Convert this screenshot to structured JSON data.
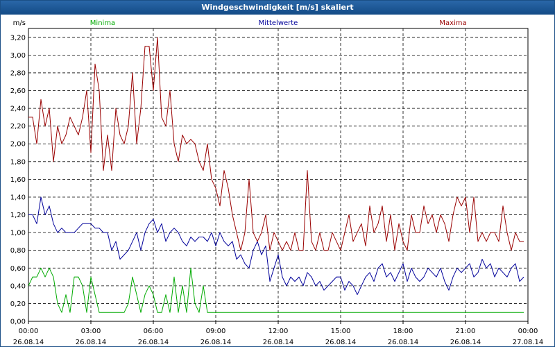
{
  "window": {
    "title": "Windgeschwindigkeit [m/s] skaliert"
  },
  "chart_data": {
    "type": "line",
    "title": "Windgeschwindigkeit [m/s] skaliert",
    "ylabel": "m/s",
    "xlabel": "",
    "ylim": [
      0,
      3.3
    ],
    "yticks": [
      "0,00",
      "0,20",
      "0,40",
      "0,60",
      "0,80",
      "1,00",
      "1,20",
      "1,40",
      "1,60",
      "1,80",
      "2,00",
      "2,20",
      "2,40",
      "2,60",
      "2,80",
      "3,00",
      "3,20"
    ],
    "xticks": [
      {
        "time": "00:00",
        "date": "26.08.14"
      },
      {
        "time": "03:00",
        "date": "26.08.14"
      },
      {
        "time": "06:00",
        "date": "26.08.14"
      },
      {
        "time": "09:00",
        "date": "26.08.14"
      },
      {
        "time": "12:00",
        "date": "26.08.14"
      },
      {
        "time": "15:00",
        "date": "26.08.14"
      },
      {
        "time": "18:00",
        "date": "26.08.14"
      },
      {
        "time": "21:00",
        "date": "26.08.14"
      },
      {
        "time": "00:00",
        "date": "27.08.14"
      }
    ],
    "x_hours": [
      0,
      0.2,
      0.4,
      0.6,
      0.8,
      1,
      1.2,
      1.4,
      1.6,
      1.8,
      2,
      2.2,
      2.4,
      2.6,
      2.8,
      3,
      3.2,
      3.4,
      3.6,
      3.8,
      4,
      4.2,
      4.4,
      4.6,
      4.8,
      5,
      5.2,
      5.4,
      5.6,
      5.8,
      6,
      6.2,
      6.4,
      6.6,
      6.8,
      7,
      7.2,
      7.4,
      7.6,
      7.8,
      8,
      8.2,
      8.4,
      8.6,
      8.8,
      9,
      9.2,
      9.4,
      9.6,
      9.8,
      10,
      10.2,
      10.4,
      10.6,
      10.8,
      11,
      11.2,
      11.4,
      11.6,
      11.8,
      12,
      12.2,
      12.4,
      12.6,
      12.8,
      13,
      13.2,
      13.4,
      13.6,
      13.8,
      14,
      14.2,
      14.4,
      14.6,
      14.8,
      15,
      15.2,
      15.4,
      15.6,
      15.8,
      16,
      16.2,
      16.4,
      16.6,
      16.8,
      17,
      17.2,
      17.4,
      17.6,
      17.8,
      18,
      18.2,
      18.4,
      18.6,
      18.8,
      19,
      19.2,
      19.4,
      19.6,
      19.8,
      20,
      20.2,
      20.4,
      20.6,
      20.8,
      21,
      21.2,
      21.4,
      21.6,
      21.8,
      22,
      22.2,
      22.4,
      22.6,
      22.8,
      23,
      23.2,
      23.4,
      23.6,
      23.8
    ],
    "grid": true,
    "legend_position": "top",
    "series": [
      {
        "name": "Minima",
        "color": "#00aa00",
        "values": [
          0.4,
          0.5,
          0.5,
          0.6,
          0.5,
          0.6,
          0.5,
          0.2,
          0.1,
          0.3,
          0.1,
          0.5,
          0.5,
          0.4,
          0.1,
          0.5,
          0.3,
          0.1,
          0.1,
          0.1,
          0.1,
          0.1,
          0.1,
          0.1,
          0.2,
          0.5,
          0.3,
          0.1,
          0.3,
          0.4,
          0.3,
          0.1,
          0.1,
          0.3,
          0.1,
          0.5,
          0.1,
          0.4,
          0.1,
          0.6,
          0.2,
          0.1,
          0.4,
          0.1,
          0.1,
          0.1,
          0.1,
          0.1,
          0.1,
          0.1,
          0.1,
          0.1,
          0.1,
          0.1,
          0.1,
          0.1,
          0.1,
          0.1,
          0.1,
          0.1,
          0.1,
          0.1,
          0.1,
          0.1,
          0.1,
          0.1,
          0.1,
          0.1,
          0.1,
          0.1,
          0.1,
          0.1,
          0.1,
          0.1,
          0.1,
          0.1,
          0.1,
          0.1,
          0.1,
          0.1,
          0.1,
          0.1,
          0.1,
          0.1,
          0.1,
          0.1,
          0.1,
          0.1,
          0.1,
          0.1,
          0.1,
          0.1,
          0.1,
          0.1,
          0.1,
          0.1,
          0.1,
          0.1,
          0.1,
          0.1,
          0.1,
          0.1,
          0.1,
          0.1,
          0.1,
          0.1,
          0.1,
          0.1,
          0.1,
          0.1,
          0.1,
          0.1,
          0.1,
          0.1,
          0.1,
          0.1,
          0.1,
          0.1,
          0.1,
          0.1
        ]
      },
      {
        "name": "Mittelwerte",
        "color": "#00009a",
        "values": [
          1.2,
          1.2,
          1.1,
          1.4,
          1.2,
          1.3,
          1.1,
          1.0,
          1.05,
          1.0,
          1.0,
          1.0,
          1.05,
          1.1,
          1.1,
          1.1,
          1.05,
          1.05,
          1.0,
          1.0,
          0.8,
          0.9,
          0.7,
          0.75,
          0.8,
          0.9,
          1.0,
          0.8,
          1.0,
          1.1,
          1.15,
          1.0,
          1.1,
          0.9,
          1.0,
          1.05,
          1.0,
          0.9,
          0.85,
          0.95,
          0.9,
          0.95,
          0.95,
          0.9,
          1.0,
          0.85,
          1.0,
          0.9,
          0.85,
          0.9,
          0.7,
          0.75,
          0.65,
          0.6,
          0.8,
          0.9,
          0.75,
          0.85,
          0.45,
          0.6,
          0.75,
          0.5,
          0.4,
          0.5,
          0.45,
          0.5,
          0.4,
          0.55,
          0.5,
          0.4,
          0.45,
          0.35,
          0.4,
          0.45,
          0.5,
          0.5,
          0.35,
          0.45,
          0.4,
          0.3,
          0.4,
          0.5,
          0.55,
          0.45,
          0.6,
          0.65,
          0.5,
          0.55,
          0.45,
          0.55,
          0.65,
          0.45,
          0.6,
          0.5,
          0.45,
          0.5,
          0.6,
          0.55,
          0.5,
          0.6,
          0.45,
          0.35,
          0.5,
          0.6,
          0.55,
          0.6,
          0.65,
          0.5,
          0.55,
          0.7,
          0.6,
          0.65,
          0.5,
          0.6,
          0.55,
          0.5,
          0.6,
          0.65,
          0.45,
          0.5
        ]
      },
      {
        "name": "Maxima",
        "color": "#990000",
        "values": [
          2.3,
          2.3,
          2.0,
          2.5,
          2.2,
          2.4,
          1.8,
          2.2,
          2.0,
          2.1,
          2.3,
          2.2,
          2.1,
          2.3,
          2.6,
          1.9,
          2.9,
          2.6,
          1.7,
          2.1,
          1.7,
          2.4,
          2.1,
          2.0,
          2.2,
          2.8,
          2.0,
          2.4,
          3.1,
          3.1,
          2.6,
          3.2,
          2.3,
          2.2,
          2.6,
          2.0,
          1.8,
          2.1,
          2.0,
          2.05,
          2.0,
          1.8,
          1.7,
          2.0,
          1.6,
          1.5,
          1.3,
          1.7,
          1.5,
          1.2,
          1.0,
          0.8,
          1.0,
          1.6,
          1.0,
          0.9,
          1.0,
          1.2,
          0.8,
          1.0,
          0.9,
          0.8,
          0.9,
          0.8,
          1.0,
          0.8,
          0.8,
          1.7,
          0.9,
          0.8,
          1.0,
          0.8,
          0.8,
          1.0,
          0.9,
          0.8,
          1.0,
          1.2,
          0.9,
          1.0,
          1.1,
          0.85,
          1.3,
          1.0,
          1.1,
          1.3,
          0.9,
          1.2,
          0.8,
          1.1,
          0.9,
          0.8,
          1.2,
          1.0,
          1.0,
          1.3,
          1.1,
          1.2,
          1.0,
          1.2,
          1.1,
          0.9,
          1.2,
          1.4,
          1.3,
          1.4,
          1.0,
          1.4,
          0.9,
          1.0,
          0.9,
          1.0,
          1.0,
          0.9,
          1.3,
          1.0,
          0.8,
          1.0,
          0.9,
          0.9
        ]
      }
    ]
  }
}
